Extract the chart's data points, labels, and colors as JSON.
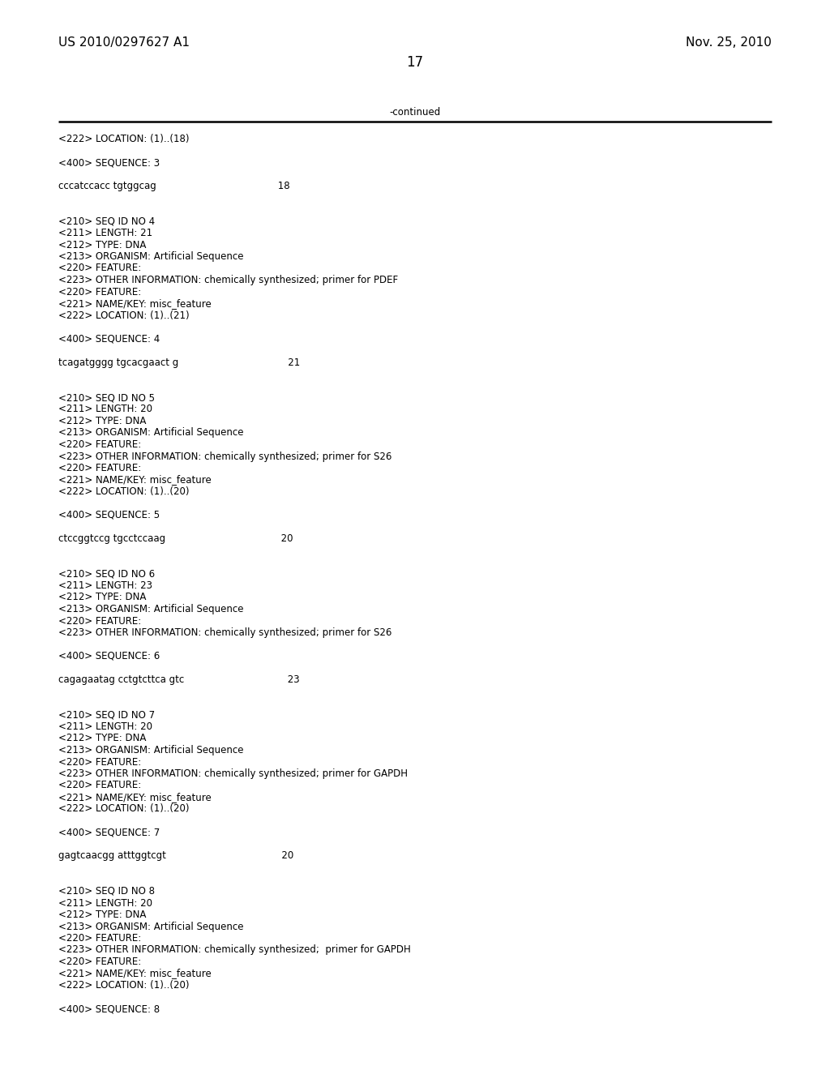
{
  "bg_color": "#ffffff",
  "header_left": "US 2010/0297627 A1",
  "header_right": "Nov. 25, 2010",
  "page_number": "17",
  "continued_label": "-continued",
  "content_lines": [
    "<222> LOCATION: (1)..(18)",
    "",
    "<400> SEQUENCE: 3",
    "",
    "cccatccacc tgtggcag                                        18",
    "",
    "",
    "<210> SEQ ID NO 4",
    "<211> LENGTH: 21",
    "<212> TYPE: DNA",
    "<213> ORGANISM: Artificial Sequence",
    "<220> FEATURE:",
    "<223> OTHER INFORMATION: chemically synthesized; primer for PDEF",
    "<220> FEATURE:",
    "<221> NAME/KEY: misc_feature",
    "<222> LOCATION: (1)..(21)",
    "",
    "<400> SEQUENCE: 4",
    "",
    "tcagatgggg tgcacgaact g                                    21",
    "",
    "",
    "<210> SEQ ID NO 5",
    "<211> LENGTH: 20",
    "<212> TYPE: DNA",
    "<213> ORGANISM: Artificial Sequence",
    "<220> FEATURE:",
    "<223> OTHER INFORMATION: chemically synthesized; primer for S26",
    "<220> FEATURE:",
    "<221> NAME/KEY: misc_feature",
    "<222> LOCATION: (1)..(20)",
    "",
    "<400> SEQUENCE: 5",
    "",
    "ctccggtccg tgcctccaag                                      20",
    "",
    "",
    "<210> SEQ ID NO 6",
    "<211> LENGTH: 23",
    "<212> TYPE: DNA",
    "<213> ORGANISM: Artificial Sequence",
    "<220> FEATURE:",
    "<223> OTHER INFORMATION: chemically synthesized; primer for S26",
    "",
    "<400> SEQUENCE: 6",
    "",
    "cagagaatag cctgtcttca gtc                                  23",
    "",
    "",
    "<210> SEQ ID NO 7",
    "<211> LENGTH: 20",
    "<212> TYPE: DNA",
    "<213> ORGANISM: Artificial Sequence",
    "<220> FEATURE:",
    "<223> OTHER INFORMATION: chemically synthesized; primer for GAPDH",
    "<220> FEATURE:",
    "<221> NAME/KEY: misc_feature",
    "<222> LOCATION: (1)..(20)",
    "",
    "<400> SEQUENCE: 7",
    "",
    "gagtcaacgg atttggtcgt                                      20",
    "",
    "",
    "<210> SEQ ID NO 8",
    "<211> LENGTH: 20",
    "<212> TYPE: DNA",
    "<213> ORGANISM: Artificial Sequence",
    "<220> FEATURE:",
    "<223> OTHER INFORMATION: chemically synthesized;  primer for GAPDH",
    "<220> FEATURE:",
    "<221> NAME/KEY: misc_feature",
    "<222> LOCATION: (1)..(20)",
    "",
    "<400> SEQUENCE: 8"
  ],
  "mono_fontsize": 8.5,
  "header_fontsize": 11,
  "page_num_fontsize": 12
}
